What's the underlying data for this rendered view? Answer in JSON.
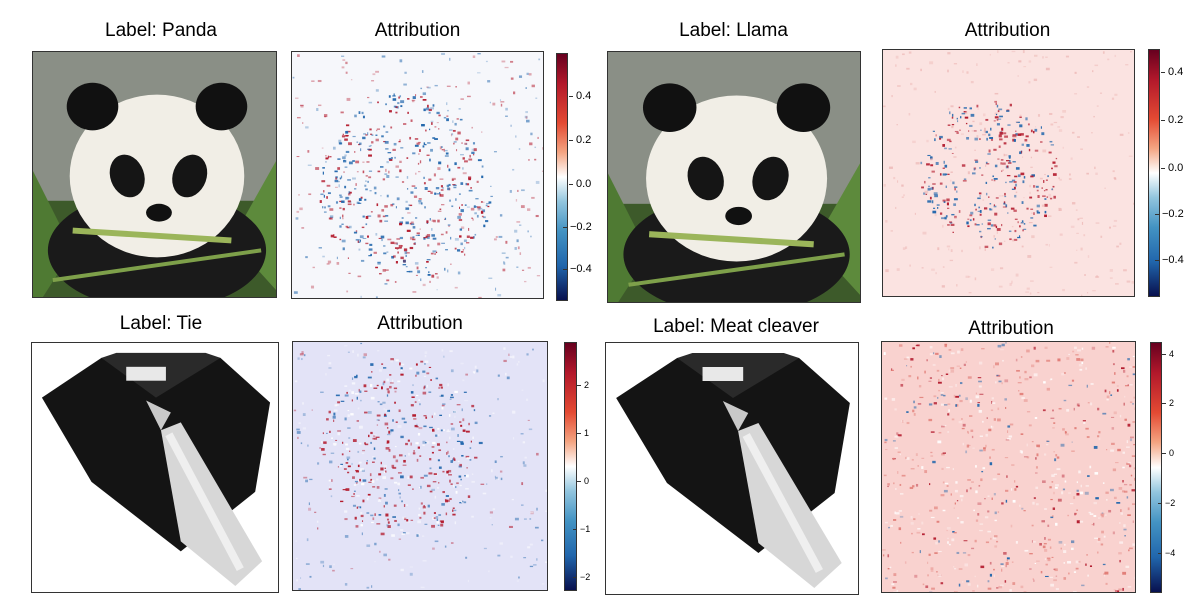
{
  "top_left": {
    "image_title": "Label: Panda",
    "attr_title": "Attribution",
    "cbar_ticks": [
      "0.4",
      "0.2",
      "0.0",
      "−0.2",
      "−0.4"
    ]
  },
  "top_right": {
    "image_title": "Label: Llama",
    "attr_title": "Attribution",
    "cbar_ticks": [
      "0.4",
      "0.2",
      "0.0",
      "−0.2",
      "−0.4"
    ]
  },
  "bot_left": {
    "image_title": "Label: Tie",
    "attr_title": "Attribution",
    "cbar_ticks": [
      "2",
      "1",
      "0",
      "−1",
      "−2"
    ]
  },
  "bot_right": {
    "image_title": "Label: Meat cleaver",
    "attr_title": "Attribution",
    "cbar_ticks": [
      "4",
      "2",
      "0",
      "−2",
      "−4"
    ]
  },
  "colormap": {
    "positive": "#b2182b",
    "neutral": "#ffffff",
    "negative": "#2166ac"
  }
}
